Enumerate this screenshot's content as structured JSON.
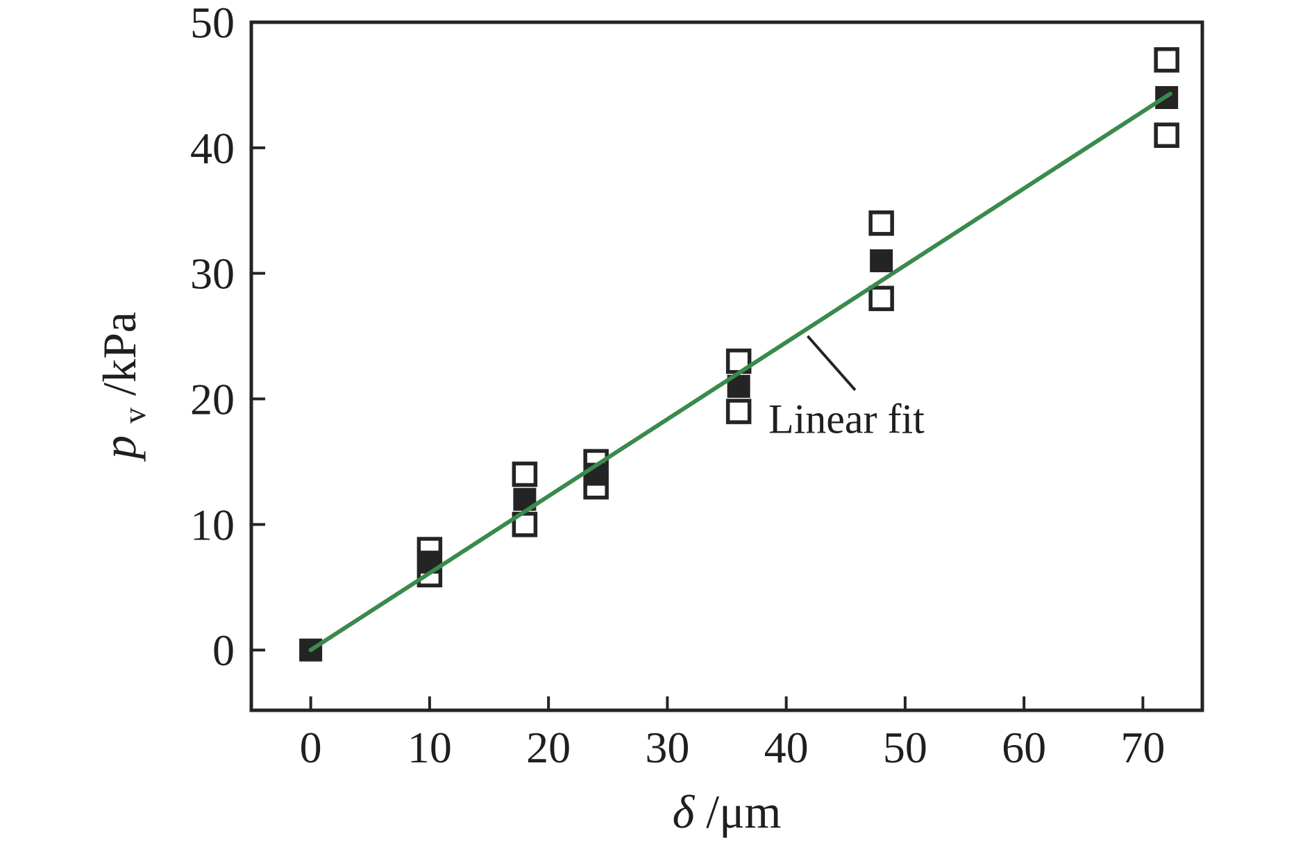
{
  "figure": {
    "background": "#ffffff"
  },
  "chart_data": {
    "type": "scatter",
    "title": "",
    "xlabel_italic": "δ",
    "xlabel_rest": "/μm",
    "ylabel_italic": "p",
    "ylabel_sub": "v",
    "ylabel_rest": "/kPa",
    "xlim": [
      -5,
      75
    ],
    "ylim": [
      -4.8,
      50
    ],
    "xticks": [
      0,
      10,
      20,
      30,
      40,
      50,
      60,
      70
    ],
    "yticks": [
      0,
      10,
      20,
      30,
      40,
      50
    ],
    "grid": false,
    "legend_position": "none",
    "axis_color": "#242424",
    "series": [
      {
        "name": "open-square-measurements",
        "marker": "open-square",
        "color": "#242424",
        "points": [
          [
            10,
            8
          ],
          [
            10,
            6
          ],
          [
            18,
            14
          ],
          [
            18,
            10
          ],
          [
            24,
            15
          ],
          [
            24,
            13
          ],
          [
            36,
            23
          ],
          [
            36,
            19
          ],
          [
            48,
            34
          ],
          [
            48,
            28
          ],
          [
            72,
            47
          ],
          [
            72,
            41
          ]
        ]
      },
      {
        "name": "filled-square-mean",
        "marker": "filled-square",
        "color": "#242424",
        "points": [
          [
            0,
            0
          ],
          [
            10,
            7
          ],
          [
            18,
            12
          ],
          [
            24,
            14
          ],
          [
            36,
            21
          ],
          [
            48,
            31
          ],
          [
            72,
            44
          ]
        ]
      }
    ],
    "fit_line": {
      "color": "#3a8a4d",
      "x1": 0,
      "y1": 0,
      "x2": 72.3,
      "y2": 44.3
    },
    "annotation": {
      "label": "Linear fit",
      "pointer": [
        [
          41.8,
          25.0
        ],
        [
          45.8,
          20.7
        ]
      ],
      "text_pos": [
        38.5,
        17.3
      ]
    }
  }
}
